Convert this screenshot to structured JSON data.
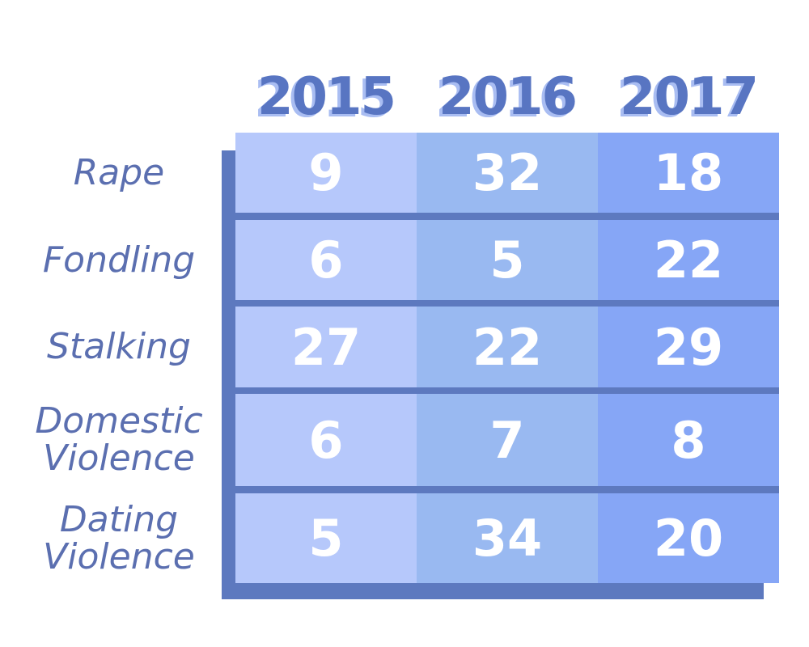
{
  "chart_data": {
    "type": "table",
    "columns": [
      "2015",
      "2016",
      "2017"
    ],
    "rows": [
      {
        "label": "Rape",
        "values": [
          9,
          32,
          18
        ]
      },
      {
        "label": "Fondling",
        "values": [
          6,
          5,
          22
        ]
      },
      {
        "label": "Stalking",
        "values": [
          27,
          22,
          29
        ]
      },
      {
        "label": "Domestic\nViolence",
        "values": [
          6,
          7,
          8
        ]
      },
      {
        "label": "Dating\nViolence",
        "values": [
          5,
          34,
          20
        ]
      }
    ]
  },
  "colors": {
    "header_text": "#5875c2",
    "header_shadow": "#a9bdf2",
    "row_label": "#5b6fb0",
    "frame": "#5d79bf",
    "col_2015": "#b6c8fb",
    "col_2016": "#99b9f1",
    "col_2017": "#86a6f6",
    "cell_text": "#ffffff"
  }
}
